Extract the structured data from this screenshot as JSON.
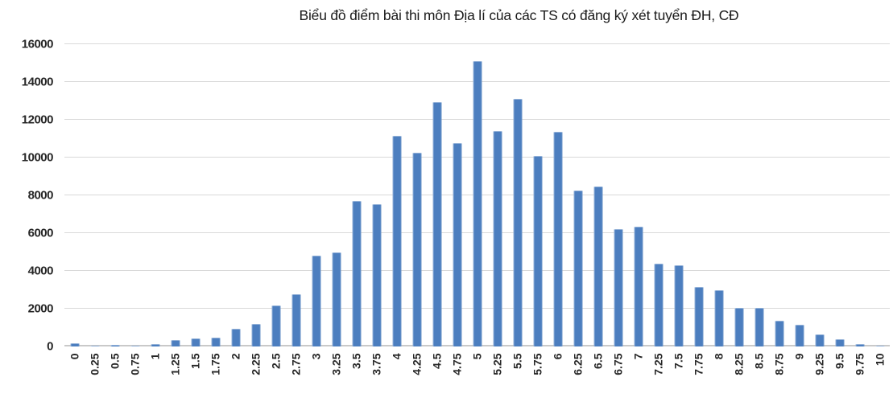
{
  "chart_title": "Biểu đồ điểm bài thi môn Địa lí của các TS có đăng ký xét tuyển ĐH, CĐ",
  "colors": {
    "bar_fill": "#4c7ebf",
    "bar_highlight": "#9db9da",
    "gridline": "#d9d9d9",
    "axis_line": "#c9c9c9",
    "text": "#262626",
    "background": "#ffffff"
  },
  "chart_data": {
    "type": "bar",
    "title": "Biểu đồ điểm bài thi môn Địa lí của các TS có đăng ký xét tuyển ĐH, CĐ",
    "xlabel": "",
    "ylabel": "",
    "categories": [
      "0",
      "0.25",
      "0.5",
      "0.75",
      "1",
      "1.25",
      "1.5",
      "1.75",
      "2",
      "2.25",
      "2.5",
      "2.75",
      "3",
      "3.25",
      "3.5",
      "3.75",
      "4",
      "4.25",
      "4.5",
      "4.75",
      "5",
      "5.25",
      "5.5",
      "5.75",
      "6",
      "6.25",
      "6.5",
      "6.75",
      "7",
      "7.25",
      "7.5",
      "7.75",
      "8",
      "8.25",
      "8.5",
      "8.75",
      "9",
      "9.25",
      "9.5",
      "9.75",
      "10"
    ],
    "values": [
      180,
      60,
      75,
      55,
      140,
      360,
      430,
      490,
      930,
      1190,
      2150,
      2780,
      4800,
      5000,
      7700,
      7550,
      11150,
      10250,
      12950,
      10750,
      15100,
      11400,
      13100,
      10100,
      11350,
      8250,
      8460,
      6200,
      6330,
      4380,
      4290,
      3130,
      3000,
      2030,
      2040,
      1380,
      1170,
      660,
      400,
      130,
      60
    ],
    "ylim": [
      0,
      16000
    ],
    "y_ticks": [
      0,
      2000,
      4000,
      6000,
      8000,
      10000,
      12000,
      14000,
      16000
    ],
    "grid": "horizontal",
    "legend": "none",
    "x_tick_rotation": -90
  }
}
